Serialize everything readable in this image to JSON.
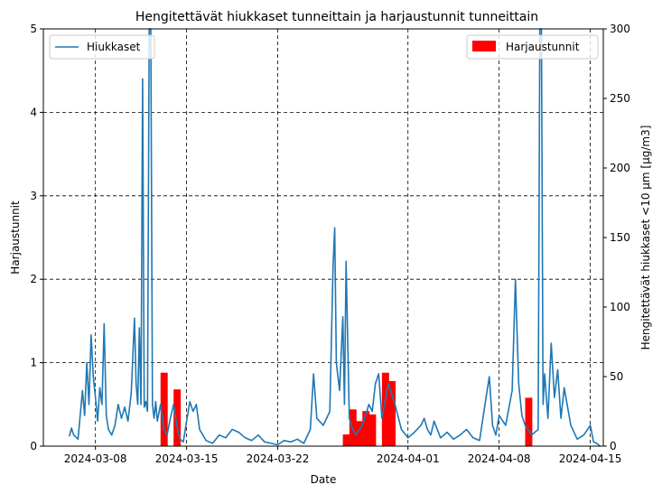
{
  "chart_data": {
    "type": "bar+line",
    "title": "Hengitettävät hiukkaset tunneittain ja harjaustunnit tunneittain",
    "xlabel": "Date",
    "ylabel_left": "Harjaustunnit",
    "ylabel_right": "Hengitettävät hiukkaset <10 µm [µg/m3]",
    "x_range": [
      "2024-03-04",
      "2024-04-16"
    ],
    "x_ticks": [
      "2024-03-08",
      "2024-03-15",
      "2024-03-22",
      "2024-04-01",
      "2024-04-08",
      "2024-04-15"
    ],
    "ylim_left": [
      0,
      5
    ],
    "y_ticks_left": [
      "0",
      "1",
      "2",
      "3",
      "4",
      "5"
    ],
    "ylim_right": [
      0,
      300
    ],
    "y_ticks_right": [
      "0",
      "50",
      "100",
      "150",
      "200",
      "250",
      "300"
    ],
    "grid": true,
    "grid_style": "dashed",
    "colors": {
      "line": "#1f77b4",
      "bars": "#ff0000"
    },
    "legend_left": {
      "position": "upper-left",
      "label": "Hiukkaset"
    },
    "legend_right": {
      "position": "upper-right",
      "label": "Harjaustunnit"
    },
    "bars": [
      {
        "x": "2024-03-13",
        "value": 0.88
      },
      {
        "x": "2024-03-14",
        "value": 0.68
      },
      {
        "x": "2024-03-27",
        "value": 0.14
      },
      {
        "x": "2024-03-27T12:00",
        "value": 0.44
      },
      {
        "x": "2024-03-28",
        "value": 0.3
      },
      {
        "x": "2024-03-28T12:00",
        "value": 0.42
      },
      {
        "x": "2024-03-29",
        "value": 0.38
      },
      {
        "x": "2024-03-30",
        "value": 0.88
      },
      {
        "x": "2024-03-30T12:00",
        "value": 0.78
      },
      {
        "x": "2024-04-10",
        "value": 0.58
      }
    ],
    "series": [
      {
        "name": "Hiukkaset",
        "axis": "right",
        "points": [
          [
            "2024-03-06T00:00",
            7
          ],
          [
            "2024-03-06T04:00",
            13
          ],
          [
            "2024-03-06T08:00",
            8
          ],
          [
            "2024-03-06T16:00",
            5
          ],
          [
            "2024-03-07T00:00",
            40
          ],
          [
            "2024-03-07T04:00",
            22
          ],
          [
            "2024-03-07T08:00",
            60
          ],
          [
            "2024-03-07T12:00",
            30
          ],
          [
            "2024-03-07T16:00",
            80
          ],
          [
            "2024-03-07T20:00",
            50
          ],
          [
            "2024-03-08T00:00",
            35
          ],
          [
            "2024-03-08T04:00",
            18
          ],
          [
            "2024-03-08T08:00",
            42
          ],
          [
            "2024-03-08T12:00",
            30
          ],
          [
            "2024-03-08T16:00",
            88
          ],
          [
            "2024-03-08T20:00",
            22
          ],
          [
            "2024-03-09T00:00",
            12
          ],
          [
            "2024-03-09T06:00",
            8
          ],
          [
            "2024-03-09T12:00",
            15
          ],
          [
            "2024-03-09T18:00",
            30
          ],
          [
            "2024-03-10T00:00",
            20
          ],
          [
            "2024-03-10T06:00",
            28
          ],
          [
            "2024-03-10T12:00",
            18
          ],
          [
            "2024-03-10T18:00",
            38
          ],
          [
            "2024-03-11T00:00",
            92
          ],
          [
            "2024-03-11T03:00",
            45
          ],
          [
            "2024-03-11T06:00",
            30
          ],
          [
            "2024-03-11T09:00",
            85
          ],
          [
            "2024-03-11T12:00",
            30
          ],
          [
            "2024-03-11T15:00",
            264
          ],
          [
            "2024-03-11T18:00",
            28
          ],
          [
            "2024-03-11T21:00",
            32
          ],
          [
            "2024-03-12T00:00",
            25
          ],
          [
            "2024-03-12T03:00",
            300
          ],
          [
            "2024-03-12T06:00",
            300
          ],
          [
            "2024-03-12T09:00",
            30
          ],
          [
            "2024-03-12T12:00",
            20
          ],
          [
            "2024-03-12T15:00",
            32
          ],
          [
            "2024-03-12T18:00",
            18
          ],
          [
            "2024-03-13T00:00",
            30
          ],
          [
            "2024-03-13T06:00",
            12
          ],
          [
            "2024-03-13T12:00",
            8
          ],
          [
            "2024-03-13T18:00",
            20
          ],
          [
            "2024-03-14T00:00",
            30
          ],
          [
            "2024-03-14T06:00",
            15
          ],
          [
            "2024-03-14T12:00",
            5
          ],
          [
            "2024-03-14T18:00",
            3
          ],
          [
            "2024-03-15T00:00",
            18
          ],
          [
            "2024-03-15T06:00",
            32
          ],
          [
            "2024-03-15T12:00",
            25
          ],
          [
            "2024-03-15T18:00",
            30
          ],
          [
            "2024-03-16T00:00",
            12
          ],
          [
            "2024-03-16T12:00",
            4
          ],
          [
            "2024-03-17T00:00",
            2
          ],
          [
            "2024-03-17T12:00",
            8
          ],
          [
            "2024-03-18T00:00",
            6
          ],
          [
            "2024-03-18T12:00",
            12
          ],
          [
            "2024-03-19T00:00",
            10
          ],
          [
            "2024-03-19T12:00",
            6
          ],
          [
            "2024-03-20T00:00",
            4
          ],
          [
            "2024-03-20T12:00",
            8
          ],
          [
            "2024-03-21T00:00",
            3
          ],
          [
            "2024-03-21T12:00",
            2
          ],
          [
            "2024-03-22T00:00",
            1
          ],
          [
            "2024-03-22T12:00",
            4
          ],
          [
            "2024-03-23T00:00",
            3
          ],
          [
            "2024-03-23T12:00",
            5
          ],
          [
            "2024-03-24T00:00",
            2
          ],
          [
            "2024-03-24T12:00",
            12
          ],
          [
            "2024-03-24T18:00",
            52
          ],
          [
            "2024-03-25T00:00",
            20
          ],
          [
            "2024-03-25T12:00",
            15
          ],
          [
            "2024-03-26T00:00",
            25
          ],
          [
            "2024-03-26T06:00",
            130
          ],
          [
            "2024-03-26T09:00",
            157
          ],
          [
            "2024-03-26T12:00",
            60
          ],
          [
            "2024-03-26T18:00",
            40
          ],
          [
            "2024-03-27T00:00",
            93
          ],
          [
            "2024-03-27T03:00",
            30
          ],
          [
            "2024-03-27T06:00",
            133
          ],
          [
            "2024-03-27T12:00",
            20
          ],
          [
            "2024-03-27T18:00",
            12
          ],
          [
            "2024-03-28T00:00",
            8
          ],
          [
            "2024-03-28T12:00",
            15
          ],
          [
            "2024-03-29T00:00",
            30
          ],
          [
            "2024-03-29T06:00",
            25
          ],
          [
            "2024-03-29T12:00",
            45
          ],
          [
            "2024-03-29T18:00",
            52
          ],
          [
            "2024-03-30T00:00",
            20
          ],
          [
            "2024-03-30T12:00",
            45
          ],
          [
            "2024-03-31T00:00",
            30
          ],
          [
            "2024-03-31T12:00",
            12
          ],
          [
            "2024-04-01T00:00",
            6
          ],
          [
            "2024-04-01T12:00",
            10
          ],
          [
            "2024-04-02T00:00",
            15
          ],
          [
            "2024-04-02T06:00",
            20
          ],
          [
            "2024-04-02T12:00",
            12
          ],
          [
            "2024-04-02T18:00",
            8
          ],
          [
            "2024-04-03T00:00",
            18
          ],
          [
            "2024-04-03T12:00",
            6
          ],
          [
            "2024-04-04T00:00",
            10
          ],
          [
            "2024-04-04T12:00",
            5
          ],
          [
            "2024-04-05T00:00",
            8
          ],
          [
            "2024-04-05T12:00",
            12
          ],
          [
            "2024-04-06T00:00",
            6
          ],
          [
            "2024-04-06T12:00",
            4
          ],
          [
            "2024-04-07T00:00",
            35
          ],
          [
            "2024-04-07T06:00",
            50
          ],
          [
            "2024-04-07T12:00",
            15
          ],
          [
            "2024-04-07T18:00",
            8
          ],
          [
            "2024-04-08T00:00",
            22
          ],
          [
            "2024-04-08T12:00",
            15
          ],
          [
            "2024-04-09T00:00",
            40
          ],
          [
            "2024-04-09T06:00",
            120
          ],
          [
            "2024-04-09T12:00",
            45
          ],
          [
            "2024-04-09T18:00",
            22
          ],
          [
            "2024-04-10T00:00",
            15
          ],
          [
            "2024-04-10T12:00",
            8
          ],
          [
            "2024-04-11T00:00",
            12
          ],
          [
            "2024-04-11T03:00",
            300
          ],
          [
            "2024-04-11T06:00",
            300
          ],
          [
            "2024-04-11T09:00",
            30
          ],
          [
            "2024-04-11T12:00",
            52
          ],
          [
            "2024-04-11T18:00",
            20
          ],
          [
            "2024-04-12T00:00",
            74
          ],
          [
            "2024-04-12T06:00",
            35
          ],
          [
            "2024-04-12T12:00",
            55
          ],
          [
            "2024-04-12T18:00",
            20
          ],
          [
            "2024-04-13T00:00",
            42
          ],
          [
            "2024-04-13T12:00",
            15
          ],
          [
            "2024-04-14T00:00",
            5
          ],
          [
            "2024-04-14T12:00",
            8
          ],
          [
            "2024-04-15T00:00",
            15
          ],
          [
            "2024-04-15T06:00",
            3
          ],
          [
            "2024-04-15T12:00",
            2
          ],
          [
            "2024-04-15T18:00",
            0
          ]
        ]
      }
    ]
  }
}
